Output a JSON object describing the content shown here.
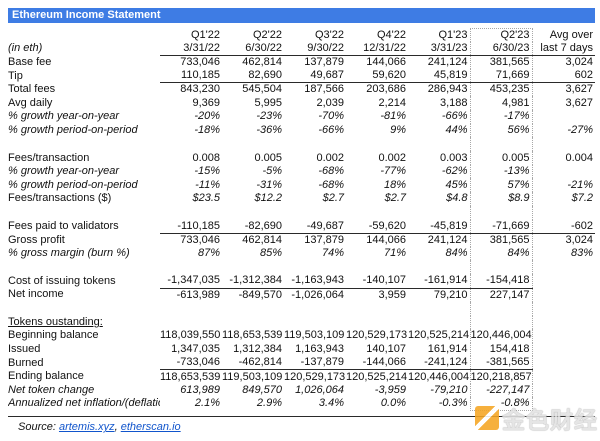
{
  "title": "Ethereum Income Statement",
  "table": {
    "unit_label": "(in eth)",
    "columns": [
      {
        "quarter": "Q1'22",
        "date": "3/31/22"
      },
      {
        "quarter": "Q2'22",
        "date": "6/30/22"
      },
      {
        "quarter": "Q3'22",
        "date": "9/30/22"
      },
      {
        "quarter": "Q4'22",
        "date": "12/31/22"
      },
      {
        "quarter": "Q1'23",
        "date": "3/31/23"
      },
      {
        "quarter": "Q2'23",
        "date": "6/30/23",
        "highlighted": true
      },
      {
        "quarter": "Avg over",
        "date": "last 7 days"
      }
    ],
    "rows": [
      {
        "label": "Base fee",
        "indent": 1,
        "values": [
          "733,046",
          "462,814",
          "137,879",
          "144,066",
          "241,124",
          "381,565",
          "3,024"
        ]
      },
      {
        "label": "Tip",
        "indent": 1,
        "line_below": "full",
        "values": [
          "110,185",
          "82,690",
          "49,687",
          "59,620",
          "45,819",
          "71,669",
          "602"
        ]
      },
      {
        "label": "Total fees",
        "indent": 0,
        "values": [
          "843,230",
          "545,504",
          "187,566",
          "203,686",
          "286,943",
          "453,235",
          "3,627"
        ]
      },
      {
        "label": "Avg daily",
        "indent": 1,
        "values": [
          "9,369",
          "5,995",
          "2,039",
          "2,214",
          "3,188",
          "4,981",
          "3,627"
        ]
      },
      {
        "label": "% growth year-on-year",
        "indent": 1,
        "label_italic": true,
        "values_italic": true,
        "values": [
          "-20%",
          "-23%",
          "-70%",
          "-81%",
          "-66%",
          "-17%",
          ""
        ]
      },
      {
        "label": "% growth period-on-period",
        "indent": 1,
        "label_italic": true,
        "values_italic": true,
        "values": [
          "-18%",
          "-36%",
          "-66%",
          "9%",
          "44%",
          "56%",
          "-27%"
        ]
      },
      {
        "spacer": true
      },
      {
        "label": "Fees/transaction",
        "indent": 0,
        "values": [
          "0.008",
          "0.005",
          "0.002",
          "0.002",
          "0.003",
          "0.005",
          "0.004"
        ]
      },
      {
        "label": "% growth year-on-year",
        "indent": 1,
        "label_italic": true,
        "values_italic": true,
        "values": [
          "-15%",
          "-5%",
          "-68%",
          "-77%",
          "-62%",
          "-13%",
          ""
        ]
      },
      {
        "label": "% growth period-on-period",
        "indent": 1,
        "label_italic": true,
        "values_italic": true,
        "values": [
          "-11%",
          "-31%",
          "-68%",
          "18%",
          "45%",
          "57%",
          "-21%"
        ]
      },
      {
        "label": "Fees/transactions ($)",
        "indent": 1,
        "values_italic": true,
        "values": [
          "$23.5",
          "$12.2",
          "$2.7",
          "$2.7",
          "$4.8",
          "$8.9",
          "$7.2"
        ]
      },
      {
        "spacer": true
      },
      {
        "label": "Fees paid to validators",
        "indent": 1,
        "line_below": "full",
        "values": [
          "-110,185",
          "-82,690",
          "-49,687",
          "-59,620",
          "-45,819",
          "-71,669",
          "-602"
        ]
      },
      {
        "label": "Gross profit",
        "indent": 0,
        "values": [
          "733,046",
          "462,814",
          "137,879",
          "144,066",
          "241,124",
          "381,565",
          "3,024"
        ]
      },
      {
        "label": "% gross margin (burn %)",
        "indent": 1,
        "label_italic": true,
        "values_italic": true,
        "values": [
          "87%",
          "85%",
          "74%",
          "71%",
          "84%",
          "84%",
          "83%"
        ]
      },
      {
        "spacer": true
      },
      {
        "label": "Cost of issuing tokens",
        "indent": 1,
        "line_below": "part",
        "values": [
          "-1,347,035",
          "-1,312,384",
          "-1,163,943",
          "-140,107",
          "-161,914",
          "-154,418",
          ""
        ]
      },
      {
        "label": "Net income",
        "indent": 0,
        "values": [
          "-613,989",
          "-849,570",
          "-1,026,064",
          "3,959",
          "79,210",
          "227,147",
          ""
        ]
      },
      {
        "spacer": true
      },
      {
        "label": "Tokens oustanding:",
        "indent": 0,
        "label_underline": true,
        "values": [
          "",
          "",
          "",
          "",
          "",
          "",
          ""
        ]
      },
      {
        "label": "Beginning balance",
        "indent": 0,
        "values": [
          "118,039,550",
          "118,653,539",
          "119,503,109",
          "120,529,173",
          "120,525,214",
          "120,446,004",
          ""
        ]
      },
      {
        "label": "Issued",
        "indent": 1,
        "values": [
          "1,347,035",
          "1,312,384",
          "1,163,943",
          "140,107",
          "161,914",
          "154,418",
          ""
        ]
      },
      {
        "label": "Burned",
        "indent": 1,
        "line_below": "part",
        "values": [
          "-733,046",
          "-462,814",
          "-137,879",
          "-144,066",
          "-241,124",
          "-381,565",
          ""
        ]
      },
      {
        "label": "Ending balance",
        "indent": 0,
        "values": [
          "118,653,539",
          "119,503,109",
          "120,529,173",
          "120,525,214",
          "120,446,004",
          "120,218,857",
          ""
        ]
      },
      {
        "label": "Net token change",
        "indent": 1,
        "label_italic": true,
        "values_italic": true,
        "values": [
          "613,989",
          "849,570",
          "1,026,064",
          "-3,959",
          "-79,210",
          "-227,147",
          ""
        ]
      },
      {
        "label": "Annualized net inflation/(deflation)",
        "indent": 0,
        "label_italic": true,
        "values_italic": true,
        "values": [
          "2.1%",
          "2.9%",
          "3.4%",
          "0.0%",
          "-0.3%",
          "-0.8%",
          ""
        ]
      }
    ]
  },
  "source": {
    "prefix": "Source: ",
    "links": [
      "artemis.xyz",
      "etherscan.io"
    ],
    "separator": ", "
  },
  "watermark": {
    "text": "金色财经"
  },
  "colors": {
    "header_bg": "#3e7ce4",
    "header_text": "#ffffff",
    "link_blue": "#1155cc",
    "rule_dark": "#2a2a2a",
    "dotted_gray": "#a8a8a8",
    "watermark_orange": "#f5a623",
    "watermark_gray": "#e2e2e2"
  }
}
